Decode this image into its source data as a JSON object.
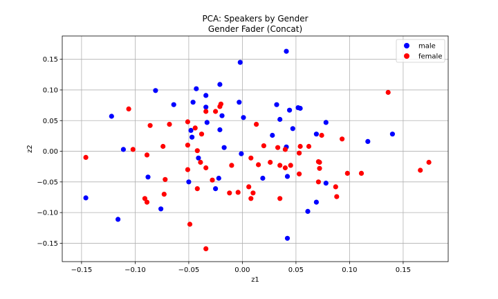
{
  "chart_data": {
    "type": "scatter",
    "title": "PCA: Speakers by Gender",
    "subtitle": "Gender Fader (Concat)",
    "xlabel": "z1",
    "ylabel": "z2",
    "xlim": [
      -0.168,
      0.192
    ],
    "ylim": [
      -0.18,
      0.188
    ],
    "xticks": [
      -0.15,
      -0.1,
      -0.05,
      0.0,
      0.05,
      0.1,
      0.15
    ],
    "xtick_labels": [
      "−0.15",
      "−0.10",
      "−0.05",
      "0.00",
      "0.05",
      "0.10",
      "0.15"
    ],
    "yticks": [
      -0.15,
      -0.1,
      -0.05,
      0.0,
      0.05,
      0.1,
      0.15
    ],
    "ytick_labels": [
      "−0.15",
      "−0.10",
      "−0.05",
      "0.00",
      "0.05",
      "0.10",
      "0.15"
    ],
    "grid": true,
    "legend_position": "top-right",
    "series": [
      {
        "name": "male",
        "color": "#0000ff",
        "points": [
          [
            0.041,
            0.163
          ],
          [
            -0.002,
            0.145
          ],
          [
            -0.043,
            0.102
          ],
          [
            -0.081,
            0.099
          ],
          [
            -0.021,
            0.109
          ],
          [
            -0.034,
            0.091
          ],
          [
            -0.064,
            0.076
          ],
          [
            -0.046,
            0.08
          ],
          [
            -0.003,
            0.08
          ],
          [
            -0.034,
            0.072
          ],
          [
            0.032,
            0.076
          ],
          [
            0.052,
            0.071
          ],
          [
            0.054,
            0.07
          ],
          [
            0.044,
            0.067
          ],
          [
            -0.122,
            0.057
          ],
          [
            -0.019,
            0.058
          ],
          [
            0.001,
            0.055
          ],
          [
            0.035,
            0.052
          ],
          [
            -0.033,
            0.047
          ],
          [
            0.078,
            0.047
          ],
          [
            0.047,
            0.037
          ],
          [
            -0.021,
            0.035
          ],
          [
            -0.048,
            0.034
          ],
          [
            0.028,
            0.026
          ],
          [
            0.069,
            0.028
          ],
          [
            0.14,
            0.028
          ],
          [
            -0.047,
            0.023
          ],
          [
            0.117,
            0.016
          ],
          [
            -0.111,
            0.003
          ],
          [
            -0.017,
            0.006
          ],
          [
            0.041,
            0.007
          ],
          [
            -0.001,
            -0.004
          ],
          [
            -0.041,
            -0.011
          ],
          [
            -0.088,
            -0.042
          ],
          [
            -0.022,
            -0.044
          ],
          [
            0.042,
            -0.041
          ],
          [
            0.019,
            -0.044
          ],
          [
            -0.05,
            -0.05
          ],
          [
            0.078,
            -0.052
          ],
          [
            -0.025,
            -0.061
          ],
          [
            0.069,
            -0.083
          ],
          [
            -0.146,
            -0.076
          ],
          [
            -0.076,
            -0.094
          ],
          [
            0.061,
            -0.098
          ],
          [
            -0.116,
            -0.111
          ],
          [
            0.042,
            -0.142
          ]
        ]
      },
      {
        "name": "female",
        "color": "#ff0000",
        "points": [
          [
            0.136,
            0.096
          ],
          [
            -0.106,
            0.069
          ],
          [
            -0.02,
            0.077
          ],
          [
            -0.021,
            0.073
          ],
          [
            -0.034,
            0.065
          ],
          [
            -0.025,
            0.065
          ],
          [
            -0.051,
            0.048
          ],
          [
            -0.068,
            0.044
          ],
          [
            -0.086,
            0.042
          ],
          [
            0.013,
            0.044
          ],
          [
            -0.044,
            0.038
          ],
          [
            -0.038,
            0.028
          ],
          [
            0.074,
            0.026
          ],
          [
            0.093,
            0.02
          ],
          [
            -0.051,
            0.01
          ],
          [
            -0.074,
            0.008
          ],
          [
            0.02,
            0.009
          ],
          [
            0.033,
            0.006
          ],
          [
            0.054,
            0.008
          ],
          [
            0.062,
            0.008
          ],
          [
            -0.102,
            0.003
          ],
          [
            -0.042,
            0.001
          ],
          [
            0.04,
            0.003
          ],
          [
            -0.089,
            -0.006
          ],
          [
            0.053,
            -0.003
          ],
          [
            -0.146,
            -0.01
          ],
          [
            0.008,
            -0.011
          ],
          [
            -0.039,
            -0.018
          ],
          [
            0.026,
            -0.018
          ],
          [
            0.015,
            -0.022
          ],
          [
            0.035,
            -0.023
          ],
          [
            0.045,
            -0.023
          ],
          [
            -0.01,
            -0.023
          ],
          [
            0.071,
            -0.017
          ],
          [
            0.072,
            -0.018
          ],
          [
            0.174,
            -0.018
          ],
          [
            -0.034,
            -0.027
          ],
          [
            0.04,
            -0.027
          ],
          [
            -0.051,
            -0.03
          ],
          [
            0.072,
            -0.028
          ],
          [
            0.166,
            -0.031
          ],
          [
            0.098,
            -0.036
          ],
          [
            0.111,
            -0.036
          ],
          [
            0.053,
            -0.037
          ],
          [
            -0.072,
            -0.046
          ],
          [
            -0.028,
            -0.047
          ],
          [
            0.071,
            -0.05
          ],
          [
            0.006,
            -0.058
          ],
          [
            0.087,
            -0.058
          ],
          [
            -0.042,
            -0.061
          ],
          [
            -0.004,
            -0.067
          ],
          [
            0.01,
            -0.068
          ],
          [
            -0.012,
            -0.068
          ],
          [
            -0.073,
            -0.07
          ],
          [
            0.088,
            -0.074
          ],
          [
            -0.091,
            -0.077
          ],
          [
            0.008,
            -0.077
          ],
          [
            0.035,
            -0.077
          ],
          [
            -0.089,
            -0.083
          ],
          [
            -0.049,
            -0.119
          ],
          [
            -0.034,
            -0.159
          ]
        ]
      }
    ]
  }
}
